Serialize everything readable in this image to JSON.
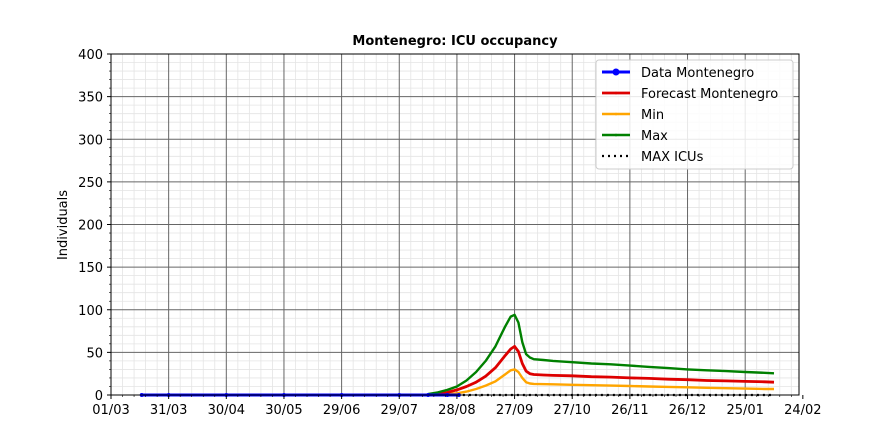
{
  "chart_data": {
    "type": "line",
    "title": "Montenegro: ICU occupancy",
    "xlabel": "",
    "ylabel": "Individuals",
    "ylim": [
      0,
      400
    ],
    "yticks": [
      0,
      50,
      100,
      150,
      200,
      250,
      300,
      350,
      400
    ],
    "xlim_days": [
      0,
      358
    ],
    "xticks": [
      {
        "day": 0,
        "label": "01/03"
      },
      {
        "day": 30,
        "label": "31/03"
      },
      {
        "day": 60,
        "label": "30/04"
      },
      {
        "day": 90,
        "label": "30/05"
      },
      {
        "day": 120,
        "label": "29/06"
      },
      {
        "day": 150,
        "label": "29/07"
      },
      {
        "day": 180,
        "label": "28/08"
      },
      {
        "day": 210,
        "label": "27/09"
      },
      {
        "day": 240,
        "label": "27/10"
      },
      {
        "day": 270,
        "label": "26/11"
      },
      {
        "day": 300,
        "label": "26/12"
      },
      {
        "day": 330,
        "label": "25/01"
      },
      {
        "day": 360,
        "label": "24/02"
      }
    ],
    "legend_position": "top-right",
    "series": [
      {
        "name": "Data Montenegro",
        "color": "#0000ff",
        "x": [
          16,
          30,
          60,
          90,
          120,
          150,
          165,
          175,
          181
        ],
        "y": [
          0,
          0,
          0,
          0,
          0,
          0,
          0,
          0,
          0
        ]
      },
      {
        "name": "Forecast Montenegro",
        "color": "#dd0000",
        "x": [
          165,
          170,
          175,
          180,
          185,
          190,
          195,
          200,
          205,
          208,
          210,
          212,
          214,
          216,
          218,
          220,
          225,
          230,
          240,
          250,
          260,
          270,
          280,
          290,
          300,
          310,
          320,
          330,
          340,
          345
        ],
        "y": [
          0,
          1,
          3,
          6,
          10,
          15,
          22,
          32,
          46,
          54,
          57,
          51,
          37,
          28,
          25,
          24,
          23.5,
          23,
          22.5,
          21.5,
          21,
          20,
          19.5,
          18.5,
          18,
          17,
          16.5,
          16,
          15.5,
          15
        ]
      },
      {
        "name": "Min",
        "color": "#ffa500",
        "x": [
          165,
          170,
          175,
          180,
          185,
          190,
          195,
          200,
          205,
          208,
          210,
          212,
          214,
          216,
          218,
          220,
          230,
          240,
          250,
          260,
          270,
          280,
          290,
          300,
          310,
          320,
          330,
          340,
          345
        ],
        "y": [
          0,
          0,
          1,
          2,
          4,
          7,
          11,
          16,
          24,
          29,
          30,
          27,
          20,
          15,
          13.5,
          13,
          12.5,
          12,
          11.5,
          11,
          10.5,
          10,
          9.5,
          9,
          8.5,
          8,
          7.5,
          7,
          7
        ]
      },
      {
        "name": "Max",
        "color": "#008000",
        "x": [
          165,
          170,
          175,
          180,
          185,
          190,
          195,
          200,
          205,
          208,
          210,
          212,
          214,
          216,
          218,
          220,
          225,
          230,
          240,
          250,
          260,
          270,
          280,
          290,
          300,
          310,
          320,
          330,
          340,
          345
        ],
        "y": [
          1,
          3,
          6,
          10,
          17,
          27,
          40,
          57,
          80,
          92,
          94,
          85,
          62,
          48,
          44,
          42,
          41,
          40,
          38.5,
          37,
          36,
          34.5,
          33,
          31.5,
          30,
          29,
          28,
          27,
          26,
          25.5
        ]
      },
      {
        "name": "MAX ICUs",
        "color": "#000000",
        "x": [
          180,
          345
        ],
        "y": [
          0,
          0
        ]
      }
    ]
  }
}
